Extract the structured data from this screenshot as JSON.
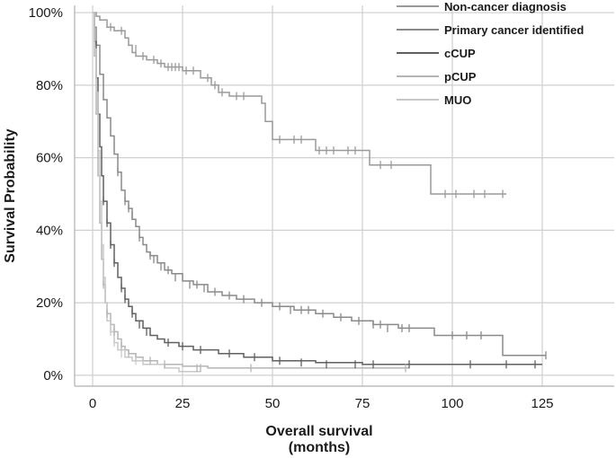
{
  "chart_data": {
    "type": "line",
    "subtype": "kaplan-meier",
    "xlabel_line1": "Overall survival",
    "xlabel_line2": "(months)",
    "ylabel": "Survival Probability",
    "xlim": [
      -5,
      145
    ],
    "ylim": [
      -0.03,
      1.02
    ],
    "x_ticks": [
      0,
      25,
      50,
      75,
      100,
      125
    ],
    "x_tick_labels": [
      "0",
      "25",
      "50",
      "75",
      "100",
      "125"
    ],
    "y_ticks": [
      0,
      0.2,
      0.4,
      0.6,
      0.8,
      1.0
    ],
    "y_tick_labels": [
      "0%",
      "20%",
      "40%",
      "60%",
      "80%",
      "100%"
    ],
    "grid": true,
    "legend_position": "top-right",
    "series": [
      {
        "name": "Non-cancer diagnosis",
        "color": "#9a9a9a",
        "points": [
          [
            0,
            1.0
          ],
          [
            1,
            0.99
          ],
          [
            2,
            0.98
          ],
          [
            4,
            0.96
          ],
          [
            6,
            0.95
          ],
          [
            9,
            0.93
          ],
          [
            10,
            0.91
          ],
          [
            11,
            0.89
          ],
          [
            12,
            0.88
          ],
          [
            15,
            0.87
          ],
          [
            18,
            0.86
          ],
          [
            20,
            0.85
          ],
          [
            25,
            0.84
          ],
          [
            30,
            0.82
          ],
          [
            33,
            0.8
          ],
          [
            35,
            0.78
          ],
          [
            38,
            0.77
          ],
          [
            47,
            0.75
          ],
          [
            48,
            0.7
          ],
          [
            50,
            0.65
          ],
          [
            62,
            0.62
          ],
          [
            77,
            0.58
          ],
          [
            94,
            0.5
          ],
          [
            115,
            0.5
          ]
        ],
        "censor": [
          [
            5,
            0.96
          ],
          [
            8,
            0.95
          ],
          [
            12,
            0.9
          ],
          [
            14,
            0.88
          ],
          [
            17,
            0.87
          ],
          [
            19,
            0.86
          ],
          [
            21,
            0.85
          ],
          [
            22,
            0.85
          ],
          [
            23,
            0.85
          ],
          [
            24,
            0.85
          ],
          [
            26,
            0.84
          ],
          [
            28,
            0.84
          ],
          [
            32,
            0.82
          ],
          [
            34,
            0.8
          ],
          [
            36,
            0.78
          ],
          [
            40,
            0.77
          ],
          [
            42,
            0.77
          ],
          [
            52,
            0.65
          ],
          [
            56,
            0.65
          ],
          [
            58,
            0.65
          ],
          [
            63,
            0.62
          ],
          [
            65,
            0.62
          ],
          [
            67,
            0.62
          ],
          [
            71,
            0.62
          ],
          [
            73,
            0.62
          ],
          [
            80,
            0.58
          ],
          [
            83,
            0.58
          ],
          [
            98,
            0.5
          ],
          [
            101,
            0.5
          ],
          [
            106,
            0.5
          ],
          [
            109,
            0.5
          ],
          [
            114,
            0.5
          ]
        ]
      },
      {
        "name": "Primary cancer identified",
        "color": "#8a8a8a",
        "points": [
          [
            0,
            1.0
          ],
          [
            0.5,
            0.96
          ],
          [
            1,
            0.91
          ],
          [
            2,
            0.83
          ],
          [
            3,
            0.76
          ],
          [
            4,
            0.71
          ],
          [
            5,
            0.66
          ],
          [
            6,
            0.61
          ],
          [
            7,
            0.56
          ],
          [
            8,
            0.51
          ],
          [
            9,
            0.48
          ],
          [
            10,
            0.46
          ],
          [
            11,
            0.43
          ],
          [
            12,
            0.41
          ],
          [
            13,
            0.38
          ],
          [
            14,
            0.36
          ],
          [
            15,
            0.34
          ],
          [
            16,
            0.33
          ],
          [
            18,
            0.31
          ],
          [
            20,
            0.29
          ],
          [
            22,
            0.28
          ],
          [
            25,
            0.26
          ],
          [
            28,
            0.25
          ],
          [
            32,
            0.23
          ],
          [
            36,
            0.22
          ],
          [
            40,
            0.21
          ],
          [
            45,
            0.2
          ],
          [
            50,
            0.19
          ],
          [
            56,
            0.18
          ],
          [
            62,
            0.17
          ],
          [
            67,
            0.16
          ],
          [
            72,
            0.15
          ],
          [
            78,
            0.14
          ],
          [
            85,
            0.13
          ],
          [
            95,
            0.11
          ],
          [
            114,
            0.11
          ],
          [
            114,
            0.055
          ],
          [
            126,
            0.055
          ]
        ],
        "censor": [
          [
            7,
            0.56
          ],
          [
            9,
            0.48
          ],
          [
            10,
            0.46
          ],
          [
            11,
            0.44
          ],
          [
            13,
            0.38
          ],
          [
            16,
            0.33
          ],
          [
            17,
            0.32
          ],
          [
            19,
            0.3
          ],
          [
            21,
            0.29
          ],
          [
            23,
            0.27
          ],
          [
            27,
            0.25
          ],
          [
            29,
            0.25
          ],
          [
            31,
            0.24
          ],
          [
            34,
            0.23
          ],
          [
            38,
            0.22
          ],
          [
            42,
            0.21
          ],
          [
            47,
            0.2
          ],
          [
            52,
            0.19
          ],
          [
            55,
            0.18
          ],
          [
            58,
            0.18
          ],
          [
            60,
            0.18
          ],
          [
            64,
            0.17
          ],
          [
            69,
            0.16
          ],
          [
            74,
            0.15
          ],
          [
            78,
            0.14
          ],
          [
            80,
            0.14
          ],
          [
            82,
            0.13
          ],
          [
            86,
            0.13
          ],
          [
            88,
            0.13
          ],
          [
            100,
            0.11
          ],
          [
            104,
            0.11
          ],
          [
            108,
            0.11
          ],
          [
            126,
            0.055
          ]
        ]
      },
      {
        "name": "cCUP",
        "color": "#606060",
        "points": [
          [
            0,
            1.0
          ],
          [
            0.5,
            0.92
          ],
          [
            1,
            0.82
          ],
          [
            1.5,
            0.72
          ],
          [
            2,
            0.63
          ],
          [
            2.5,
            0.55
          ],
          [
            3,
            0.48
          ],
          [
            4,
            0.42
          ],
          [
            5,
            0.36
          ],
          [
            6,
            0.31
          ],
          [
            7,
            0.27
          ],
          [
            8,
            0.24
          ],
          [
            9,
            0.21
          ],
          [
            10,
            0.19
          ],
          [
            11,
            0.17
          ],
          [
            12,
            0.15
          ],
          [
            14,
            0.13
          ],
          [
            16,
            0.11
          ],
          [
            18,
            0.1
          ],
          [
            20,
            0.09
          ],
          [
            24,
            0.08
          ],
          [
            28,
            0.07
          ],
          [
            35,
            0.06
          ],
          [
            42,
            0.05
          ],
          [
            50,
            0.04
          ],
          [
            62,
            0.035
          ],
          [
            75,
            0.03
          ],
          [
            125,
            0.03
          ]
        ],
        "censor": [
          [
            3,
            0.48
          ],
          [
            4,
            0.42
          ],
          [
            5,
            0.36
          ],
          [
            6,
            0.31
          ],
          [
            8,
            0.24
          ],
          [
            9,
            0.21
          ],
          [
            11,
            0.17
          ],
          [
            13,
            0.14
          ],
          [
            15,
            0.12
          ],
          [
            21,
            0.09
          ],
          [
            25,
            0.08
          ],
          [
            30,
            0.07
          ],
          [
            38,
            0.06
          ],
          [
            45,
            0.05
          ],
          [
            52,
            0.04
          ],
          [
            58,
            0.035
          ],
          [
            65,
            0.03
          ],
          [
            73,
            0.03
          ],
          [
            78,
            0.03
          ],
          [
            88,
            0.03
          ],
          [
            105,
            0.03
          ],
          [
            115,
            0.03
          ],
          [
            123,
            0.03
          ]
        ]
      },
      {
        "name": "pCUP",
        "color": "#b5b5b5",
        "points": [
          [
            0,
            1.0
          ],
          [
            0.5,
            0.88
          ],
          [
            1,
            0.72
          ],
          [
            1.5,
            0.55
          ],
          [
            2,
            0.42
          ],
          [
            2.5,
            0.32
          ],
          [
            3,
            0.25
          ],
          [
            3.5,
            0.2
          ],
          [
            4,
            0.17
          ],
          [
            5,
            0.14
          ],
          [
            6,
            0.12
          ],
          [
            7,
            0.1
          ],
          [
            8,
            0.08
          ],
          [
            9,
            0.07
          ],
          [
            10,
            0.06
          ],
          [
            12,
            0.05
          ],
          [
            14,
            0.04
          ],
          [
            18,
            0.03
          ],
          [
            25,
            0.025
          ],
          [
            32,
            0.02
          ],
          [
            88,
            0.02
          ]
        ],
        "censor": [
          [
            3,
            0.25
          ],
          [
            4,
            0.17
          ],
          [
            6,
            0.12
          ],
          [
            8,
            0.08
          ],
          [
            10,
            0.06
          ],
          [
            12,
            0.05
          ],
          [
            16,
            0.04
          ],
          [
            20,
            0.03
          ],
          [
            29,
            0.02
          ],
          [
            30,
            0.02
          ],
          [
            44,
            0.02
          ],
          [
            87,
            0.02
          ]
        ]
      },
      {
        "name": "MUO",
        "color": "#c8c8c8",
        "points": [
          [
            0,
            1.0
          ],
          [
            0.5,
            0.9
          ],
          [
            1,
            0.78
          ],
          [
            1.5,
            0.62
          ],
          [
            2,
            0.48
          ],
          [
            2.5,
            0.36
          ],
          [
            3,
            0.27
          ],
          [
            3.5,
            0.2
          ],
          [
            4,
            0.15
          ],
          [
            5,
            0.12
          ],
          [
            6,
            0.09
          ],
          [
            7,
            0.07
          ],
          [
            9,
            0.05
          ],
          [
            11,
            0.04
          ],
          [
            14,
            0.03
          ],
          [
            20,
            0.02
          ],
          [
            24,
            0.01
          ],
          [
            30,
            0.01
          ]
        ],
        "censor": [
          [
            5,
            0.12
          ],
          [
            6,
            0.09
          ],
          [
            8,
            0.06
          ],
          [
            12,
            0.04
          ]
        ]
      }
    ]
  }
}
